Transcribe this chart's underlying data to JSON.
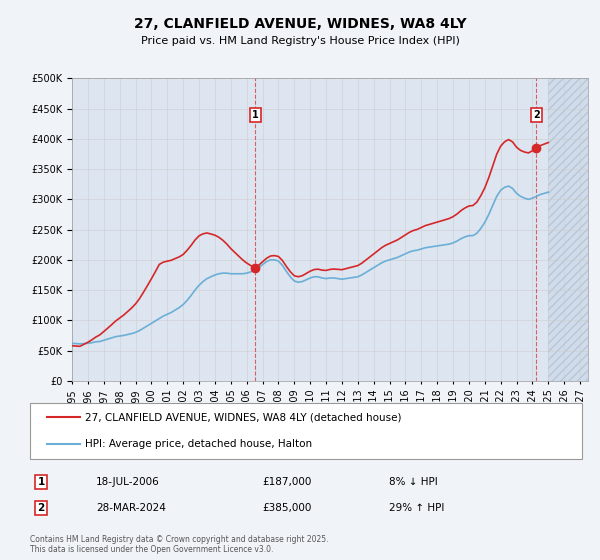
{
  "title": "27, CLANFIELD AVENUE, WIDNES, WA8 4LY",
  "subtitle": "Price paid vs. HM Land Registry's House Price Index (HPI)",
  "ylabel_ticks": [
    "£0",
    "£50K",
    "£100K",
    "£150K",
    "£200K",
    "£250K",
    "£300K",
    "£350K",
    "£400K",
    "£450K",
    "£500K"
  ],
  "ytick_values": [
    0,
    50000,
    100000,
    150000,
    200000,
    250000,
    300000,
    350000,
    400000,
    450000,
    500000
  ],
  "ylim": [
    0,
    500000
  ],
  "xlim_start": 1995.0,
  "xlim_end": 2027.5,
  "hpi_color": "#6baed6",
  "price_color": "#d62728",
  "marker_color": "#d62728",
  "hatch_color": "#d0d8e8",
  "grid_color": "#cccccc",
  "background_color": "#e8eef5",
  "plot_bg_color": "#dce5f0",
  "legend_label_red": "27, CLANFIELD AVENUE, WIDNES, WA8 4LY (detached house)",
  "legend_label_blue": "HPI: Average price, detached house, Halton",
  "annotation1_date": "18-JUL-2006",
  "annotation1_price": "£187,000",
  "annotation1_hpi": "8% ↓ HPI",
  "annotation1_year": 2006.54,
  "annotation1_price_val": 187000,
  "annotation2_date": "28-MAR-2024",
  "annotation2_price": "£385,000",
  "annotation2_hpi": "29% ↑ HPI",
  "annotation2_year": 2024.24,
  "annotation2_price_val": 385000,
  "footer": "Contains HM Land Registry data © Crown copyright and database right 2025.\nThis data is licensed under the Open Government Licence v3.0.",
  "hpi_years": [
    1995.0,
    1995.25,
    1995.5,
    1995.75,
    1996.0,
    1996.25,
    1996.5,
    1996.75,
    1997.0,
    1997.25,
    1997.5,
    1997.75,
    1998.0,
    1998.25,
    1998.5,
    1998.75,
    1999.0,
    1999.25,
    1999.5,
    1999.75,
    2000.0,
    2000.25,
    2000.5,
    2000.75,
    2001.0,
    2001.25,
    2001.5,
    2001.75,
    2002.0,
    2002.25,
    2002.5,
    2002.75,
    2003.0,
    2003.25,
    2003.5,
    2003.75,
    2004.0,
    2004.25,
    2004.5,
    2004.75,
    2005.0,
    2005.25,
    2005.5,
    2005.75,
    2006.0,
    2006.25,
    2006.5,
    2006.75,
    2007.0,
    2007.25,
    2007.5,
    2007.75,
    2008.0,
    2008.25,
    2008.5,
    2008.75,
    2009.0,
    2009.25,
    2009.5,
    2009.75,
    2010.0,
    2010.25,
    2010.5,
    2010.75,
    2011.0,
    2011.25,
    2011.5,
    2011.75,
    2012.0,
    2012.25,
    2012.5,
    2012.75,
    2013.0,
    2013.25,
    2013.5,
    2013.75,
    2014.0,
    2014.25,
    2014.5,
    2014.75,
    2015.0,
    2015.25,
    2015.5,
    2015.75,
    2016.0,
    2016.25,
    2016.5,
    2016.75,
    2017.0,
    2017.25,
    2017.5,
    2017.75,
    2018.0,
    2018.25,
    2018.5,
    2018.75,
    2019.0,
    2019.25,
    2019.5,
    2019.75,
    2020.0,
    2020.25,
    2020.5,
    2020.75,
    2021.0,
    2021.25,
    2021.5,
    2021.75,
    2022.0,
    2022.25,
    2022.5,
    2022.75,
    2023.0,
    2023.25,
    2023.5,
    2023.75,
    2024.0,
    2024.25,
    2024.5,
    2024.75,
    2025.0
  ],
  "hpi_values": [
    62000,
    61500,
    61000,
    61500,
    62000,
    63000,
    64500,
    65000,
    67000,
    69000,
    71000,
    73000,
    74000,
    75000,
    76500,
    78000,
    80000,
    83000,
    87000,
    91000,
    95000,
    99000,
    103000,
    107000,
    110000,
    113000,
    117000,
    121000,
    126000,
    133000,
    141000,
    150000,
    158000,
    164000,
    169000,
    172000,
    175000,
    177000,
    178000,
    178000,
    177000,
    177000,
    177000,
    177000,
    178000,
    180000,
    183000,
    187000,
    192000,
    197000,
    200000,
    200000,
    198000,
    191000,
    181000,
    172000,
    165000,
    163000,
    164000,
    167000,
    170000,
    172000,
    172000,
    170000,
    169000,
    170000,
    170000,
    169000,
    168000,
    169000,
    170000,
    171000,
    172000,
    175000,
    179000,
    183000,
    187000,
    191000,
    195000,
    198000,
    200000,
    202000,
    204000,
    207000,
    210000,
    213000,
    215000,
    216000,
    218000,
    220000,
    221000,
    222000,
    223000,
    224000,
    225000,
    226000,
    228000,
    231000,
    235000,
    238000,
    240000,
    240000,
    244000,
    252000,
    262000,
    275000,
    290000,
    305000,
    315000,
    320000,
    322000,
    318000,
    310000,
    305000,
    302000,
    300000,
    302000,
    305000,
    308000,
    310000,
    312000
  ],
  "price_years": [
    1995.5,
    2000.5,
    2006.54,
    2024.24
  ],
  "price_values": [
    57000,
    192500,
    187000,
    385000
  ],
  "xtick_years": [
    1995,
    1996,
    1997,
    1998,
    1999,
    2000,
    2001,
    2002,
    2003,
    2004,
    2005,
    2006,
    2007,
    2008,
    2009,
    2010,
    2011,
    2012,
    2013,
    2014,
    2015,
    2016,
    2017,
    2018,
    2019,
    2020,
    2021,
    2022,
    2023,
    2024,
    2025,
    2026,
    2027
  ],
  "hatch_start": 2025.0
}
